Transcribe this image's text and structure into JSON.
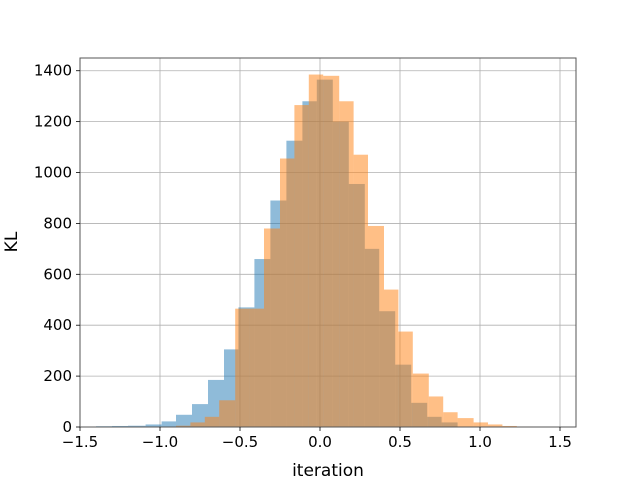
{
  "chart_data": {
    "type": "histogram",
    "title": "",
    "xlabel": "iteration",
    "ylabel": "KL",
    "xlim": [
      -1.5,
      1.6
    ],
    "ylim": [
      0,
      1450
    ],
    "grid": true,
    "legend": "none",
    "x_ticks": [
      -1.5,
      -1.0,
      -0.5,
      0.0,
      0.5,
      1.0,
      1.5
    ],
    "x_tick_labels": [
      "−1.5",
      "−1.0",
      "−0.5",
      "0.0",
      "0.5",
      "1.0",
      "1.5"
    ],
    "y_ticks": [
      0,
      200,
      400,
      600,
      800,
      1000,
      1200,
      1400
    ],
    "y_tick_labels": [
      "0",
      "200",
      "400",
      "600",
      "800",
      "1000",
      "1200",
      "1400"
    ],
    "series": [
      {
        "color": "#1f77b4",
        "alpha": 0.5,
        "bins": [
          {
            "x0": -1.4,
            "x1": -1.3,
            "value": 3
          },
          {
            "x0": -1.3,
            "x1": -1.2,
            "value": 4
          },
          {
            "x0": -1.2,
            "x1": -1.09,
            "value": 5
          },
          {
            "x0": -1.09,
            "x1": -0.99,
            "value": 10
          },
          {
            "x0": -0.99,
            "x1": -0.9,
            "value": 22
          },
          {
            "x0": -0.9,
            "x1": -0.8,
            "value": 48
          },
          {
            "x0": -0.8,
            "x1": -0.7,
            "value": 90
          },
          {
            "x0": -0.7,
            "x1": -0.6,
            "value": 185
          },
          {
            "x0": -0.6,
            "x1": -0.51,
            "value": 305
          },
          {
            "x0": -0.51,
            "x1": -0.41,
            "value": 470
          },
          {
            "x0": -0.41,
            "x1": -0.31,
            "value": 660
          },
          {
            "x0": -0.31,
            "x1": -0.21,
            "value": 890
          },
          {
            "x0": -0.21,
            "x1": -0.11,
            "value": 1125
          },
          {
            "x0": -0.11,
            "x1": -0.02,
            "value": 1280
          },
          {
            "x0": -0.02,
            "x1": 0.08,
            "value": 1365
          },
          {
            "x0": 0.08,
            "x1": 0.18,
            "value": 1200
          },
          {
            "x0": 0.18,
            "x1": 0.28,
            "value": 955
          },
          {
            "x0": 0.28,
            "x1": 0.37,
            "value": 700
          },
          {
            "x0": 0.37,
            "x1": 0.47,
            "value": 455
          },
          {
            "x0": 0.47,
            "x1": 0.57,
            "value": 245
          },
          {
            "x0": 0.57,
            "x1": 0.67,
            "value": 95
          },
          {
            "x0": 0.67,
            "x1": 0.76,
            "value": 40
          },
          {
            "x0": 0.76,
            "x1": 0.86,
            "value": 18
          }
        ]
      },
      {
        "color": "#ff7f0e",
        "alpha": 0.5,
        "bins": [
          {
            "x0": -0.9,
            "x1": -0.81,
            "value": 5
          },
          {
            "x0": -0.81,
            "x1": -0.72,
            "value": 18
          },
          {
            "x0": -0.72,
            "x1": -0.63,
            "value": 40
          },
          {
            "x0": -0.63,
            "x1": -0.53,
            "value": 105
          },
          {
            "x0": -0.53,
            "x1": -0.44,
            "value": 465
          },
          {
            "x0": -0.44,
            "x1": -0.35,
            "value": 465
          },
          {
            "x0": -0.35,
            "x1": -0.25,
            "value": 780
          },
          {
            "x0": -0.25,
            "x1": -0.16,
            "value": 1055
          },
          {
            "x0": -0.16,
            "x1": -0.07,
            "value": 1265
          },
          {
            "x0": -0.07,
            "x1": 0.02,
            "value": 1385
          },
          {
            "x0": 0.02,
            "x1": 0.12,
            "value": 1380
          },
          {
            "x0": 0.12,
            "x1": 0.21,
            "value": 1280
          },
          {
            "x0": 0.21,
            "x1": 0.3,
            "value": 1070
          },
          {
            "x0": 0.3,
            "x1": 0.4,
            "value": 790
          },
          {
            "x0": 0.4,
            "x1": 0.49,
            "value": 540
          },
          {
            "x0": 0.49,
            "x1": 0.58,
            "value": 375
          },
          {
            "x0": 0.58,
            "x1": 0.68,
            "value": 210
          },
          {
            "x0": 0.68,
            "x1": 0.77,
            "value": 120
          },
          {
            "x0": 0.77,
            "x1": 0.86,
            "value": 58
          },
          {
            "x0": 0.86,
            "x1": 0.96,
            "value": 35
          },
          {
            "x0": 0.96,
            "x1": 1.05,
            "value": 18
          },
          {
            "x0": 1.05,
            "x1": 1.14,
            "value": 10
          },
          {
            "x0": 1.14,
            "x1": 1.23,
            "value": 4
          },
          {
            "x0": 1.23,
            "x1": 1.33,
            "value": 2
          }
        ]
      }
    ]
  }
}
